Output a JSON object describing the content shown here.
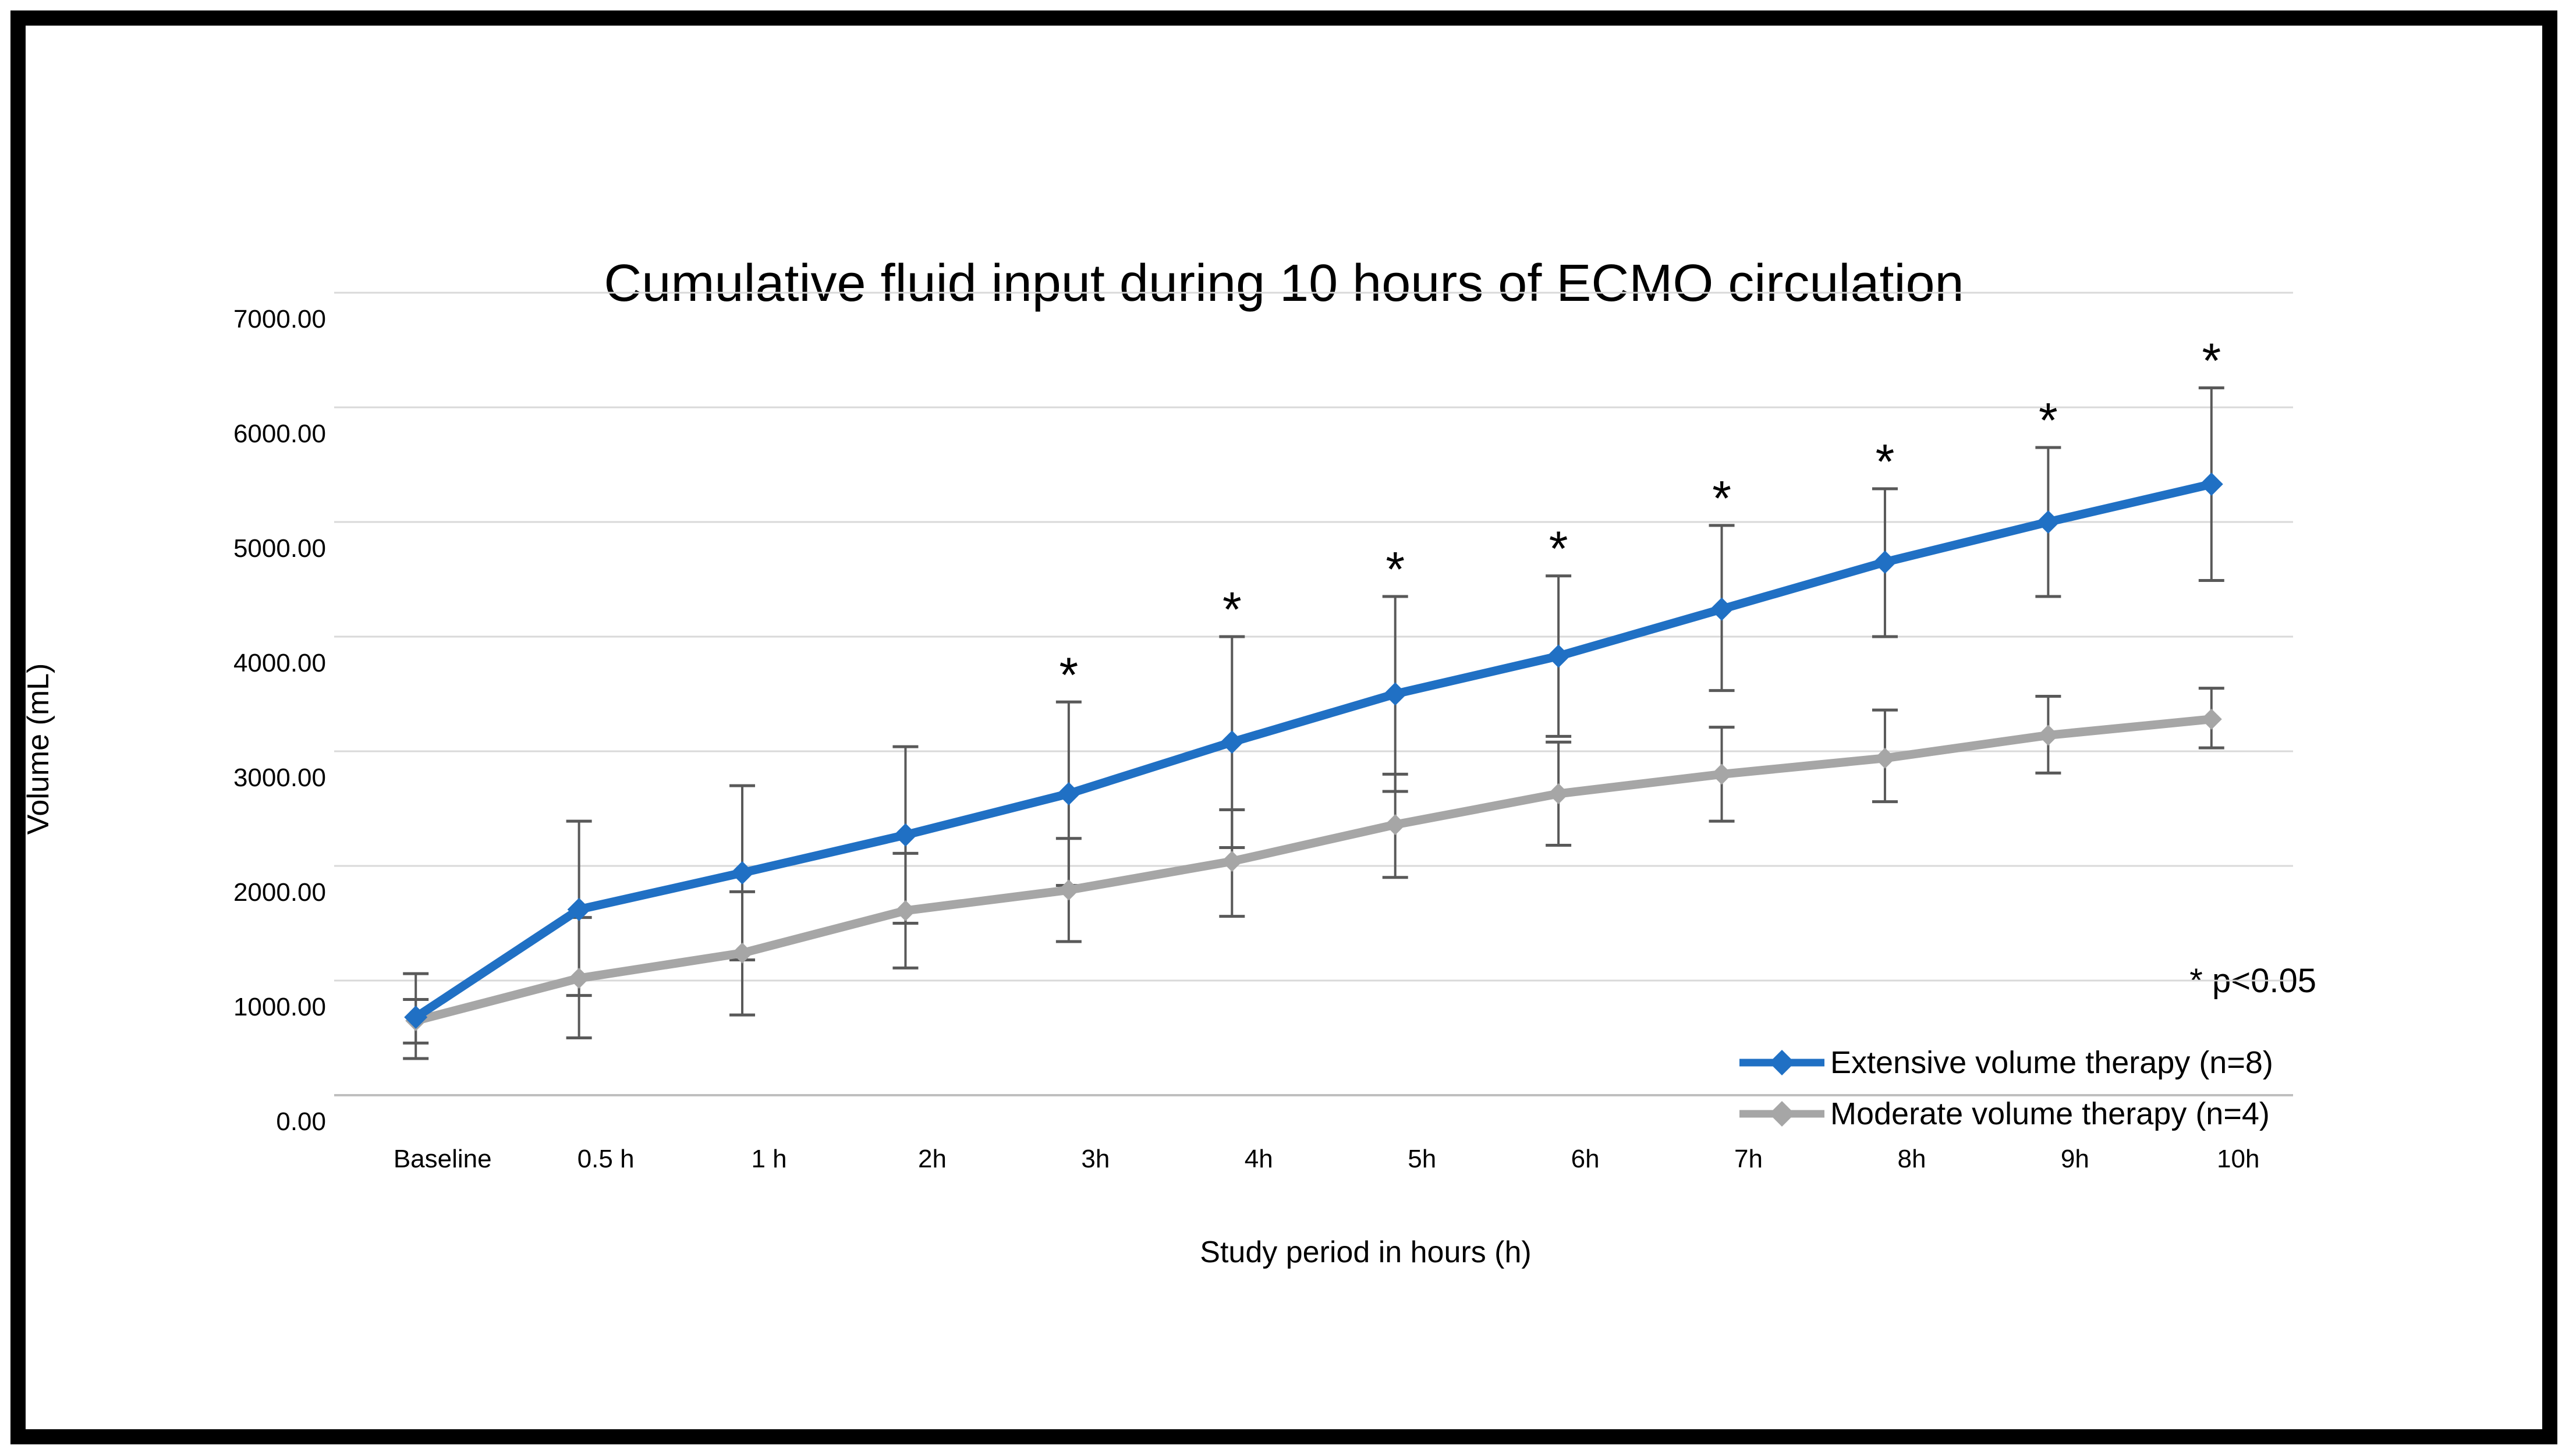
{
  "chart_data": {
    "type": "line",
    "title": "Cumulative fluid input during 10 hours of ECMO circulation",
    "xlabel": "Study period in hours (h)",
    "ylabel": "Volume (mL)",
    "ylim": [
      0,
      7000
    ],
    "ytick_interval": 1000,
    "ytick_labels": [
      "0.00",
      "1000.00",
      "2000.00",
      "3000.00",
      "4000.00",
      "5000.00",
      "6000.00",
      "7000.00"
    ],
    "categories": [
      "Baseline",
      "0.5 h",
      "1 h",
      "2h",
      "3h",
      "4h",
      "5h",
      "6h",
      "7h",
      "8h",
      "9h",
      "10h"
    ],
    "grid": true,
    "legend_position": "inside-bottom-right",
    "significance_note": "* p<0.05",
    "significance_marker": "*",
    "significant_category_indices": [
      4,
      5,
      6,
      7,
      8,
      9,
      10,
      11
    ],
    "series": [
      {
        "name": "Extensive volume therapy (n=8)",
        "color": "#2070C4",
        "values": [
          680,
          1620,
          1940,
          2270,
          2630,
          3080,
          3500,
          3830,
          4240,
          4650,
          5000,
          5330
        ],
        "whisker_low": [
          320,
          870,
          1180,
          1500,
          1830,
          2160,
          2650,
          3130,
          3530,
          4000,
          4350,
          4490
        ],
        "whisker_high": [
          1060,
          2390,
          2700,
          3040,
          3430,
          4000,
          4350,
          4530,
          4970,
          5290,
          5650,
          6170
        ]
      },
      {
        "name": "Moderate volume therapy (n=4)",
        "color": "#A6A6A6",
        "values": [
          650,
          1020,
          1240,
          1610,
          1790,
          2040,
          2360,
          2630,
          2800,
          2940,
          3140,
          3280
        ],
        "whisker_low": [
          455,
          500,
          700,
          1110,
          1340,
          1560,
          1900,
          2180,
          2390,
          2560,
          2810,
          3030
        ],
        "whisker_high": [
          835,
          1550,
          1775,
          2110,
          2240,
          2490,
          2800,
          3080,
          3210,
          3360,
          3480,
          3550
        ]
      }
    ],
    "colors": {
      "gridline": "#D9D9D9",
      "zero_axis": "#BFBFBF",
      "error_bar": "#595959",
      "text": "#000000"
    }
  }
}
